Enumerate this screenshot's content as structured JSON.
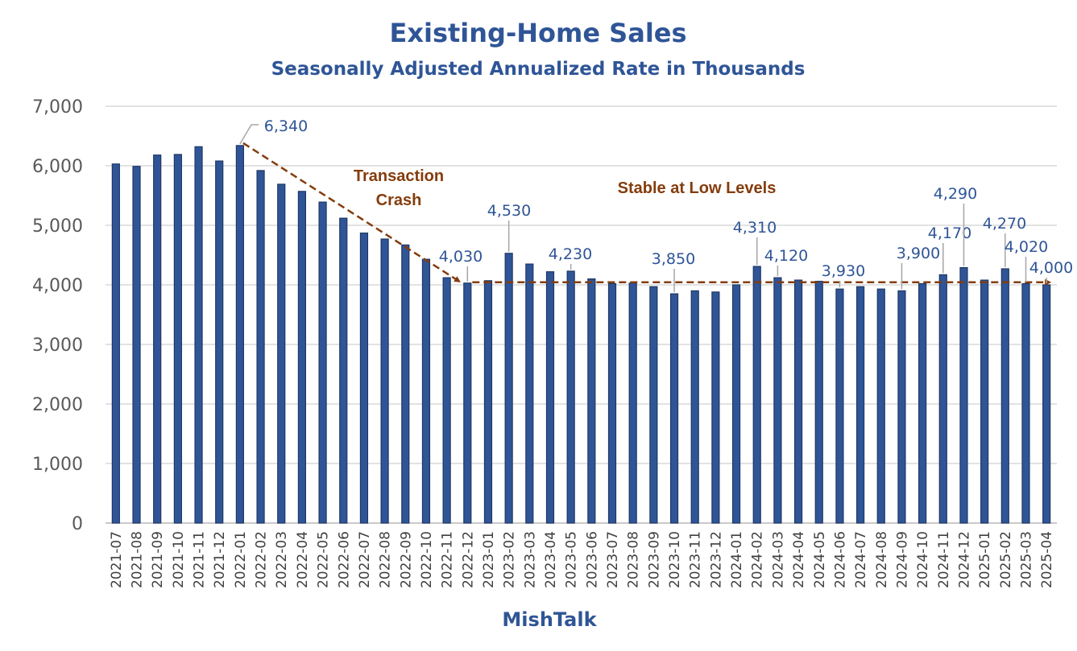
{
  "chart_data": {
    "type": "bar",
    "title": "Existing-Home Sales",
    "subtitle": "Seasonally Adjusted Annualized Rate in Thousands",
    "xlabel": "MishTalk",
    "ylabel": "",
    "ylim": [
      0,
      7000
    ],
    "yticks": [
      "0",
      "1,000",
      "2,000",
      "3,000",
      "4,000",
      "5,000",
      "6,000",
      "7,000"
    ],
    "grid": true,
    "legend": "none",
    "bar_color": "#2f5597",
    "annotation_color": "#843c0c",
    "categories": [
      "2021-07",
      "2021-08",
      "2021-09",
      "2021-10",
      "2021-11",
      "2021-12",
      "2022-01",
      "2022-02",
      "2022-03",
      "2022-04",
      "2022-05",
      "2022-06",
      "2022-07",
      "2022-08",
      "2022-09",
      "2022-10",
      "2022-11",
      "2022-12",
      "2023-01",
      "2023-02",
      "2023-03",
      "2023-04",
      "2023-05",
      "2023-06",
      "2023-07",
      "2023-08",
      "2023-09",
      "2023-10",
      "2023-11",
      "2023-12",
      "2024-01",
      "2024-02",
      "2024-03",
      "2024-04",
      "2024-05",
      "2024-06",
      "2024-07",
      "2024-08",
      "2024-09",
      "2024-10",
      "2024-11",
      "2024-12",
      "2025-01",
      "2025-02",
      "2025-03",
      "2025-04"
    ],
    "values": [
      6030,
      5990,
      6180,
      6190,
      6320,
      6080,
      6340,
      5920,
      5690,
      5570,
      5390,
      5120,
      4870,
      4770,
      4670,
      4430,
      4120,
      4030,
      4070,
      4530,
      4350,
      4220,
      4230,
      4100,
      4020,
      4030,
      3970,
      3850,
      3900,
      3880,
      4000,
      4310,
      4120,
      4080,
      4060,
      3930,
      3970,
      3930,
      3900,
      4020,
      4170,
      4290,
      4080,
      4270,
      4020,
      4000
    ],
    "data_labels": [
      {
        "category": "2022-01",
        "text": "6,340"
      },
      {
        "category": "2022-12",
        "text": "4,030"
      },
      {
        "category": "2023-02",
        "text": "4,530"
      },
      {
        "category": "2023-05",
        "text": "4,230"
      },
      {
        "category": "2023-10",
        "text": "3,850"
      },
      {
        "category": "2024-02",
        "text": "4,310"
      },
      {
        "category": "2024-03",
        "text": "4,120"
      },
      {
        "category": "2024-06",
        "text": "3,930"
      },
      {
        "category": "2024-09",
        "text": "3,900"
      },
      {
        "category": "2024-11",
        "text": "4,170"
      },
      {
        "category": "2024-12",
        "text": "4,290"
      },
      {
        "category": "2025-02",
        "text": "4,270"
      },
      {
        "category": "2025-03",
        "text": "4,020"
      },
      {
        "category": "2025-04",
        "text": "4,000"
      }
    ],
    "annotations": [
      {
        "text_lines": [
          "Transaction",
          "Crash"
        ],
        "arrow_from": "2022-01",
        "arrow_to": "2022-12"
      },
      {
        "text_lines": [
          "Stable at Low Levels"
        ],
        "arrow_from": "2022-12",
        "arrow_to": "2025-04"
      }
    ]
  }
}
